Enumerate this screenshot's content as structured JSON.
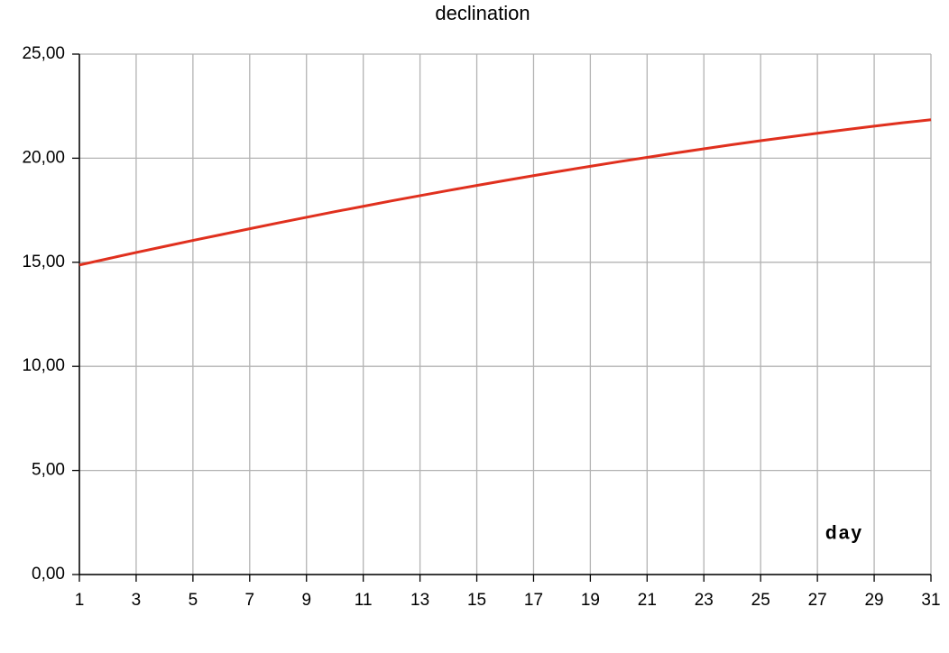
{
  "chart_data": {
    "type": "line",
    "title": "declination",
    "x_label": "day",
    "x": [
      1,
      2,
      3,
      4,
      5,
      6,
      7,
      8,
      9,
      10,
      11,
      12,
      13,
      14,
      15,
      16,
      17,
      18,
      19,
      20,
      21,
      22,
      23,
      24,
      25,
      26,
      27,
      28,
      29,
      30,
      31
    ],
    "values": [
      14.87,
      15.17,
      15.47,
      15.76,
      16.05,
      16.33,
      16.61,
      16.89,
      17.16,
      17.43,
      17.69,
      17.95,
      18.2,
      18.45,
      18.69,
      18.93,
      19.16,
      19.39,
      19.61,
      19.83,
      20.04,
      20.25,
      20.45,
      20.65,
      20.84,
      21.02,
      21.2,
      21.37,
      21.54,
      21.7,
      21.85
    ],
    "color": "#e0301e",
    "xlim": [
      1,
      31
    ],
    "xticks": [
      1,
      3,
      5,
      7,
      9,
      11,
      13,
      15,
      17,
      19,
      21,
      23,
      25,
      27,
      29,
      31
    ],
    "ylim": [
      0,
      25
    ],
    "yticks": [
      {
        "value": 0,
        "label": "0,00"
      },
      {
        "value": 5,
        "label": "5,00"
      },
      {
        "value": 10,
        "label": "10,00"
      },
      {
        "value": 15,
        "label": "15,00"
      },
      {
        "value": 20,
        "label": "20,00"
      },
      {
        "value": 25,
        "label": "25,00"
      }
    ],
    "grid": true
  }
}
